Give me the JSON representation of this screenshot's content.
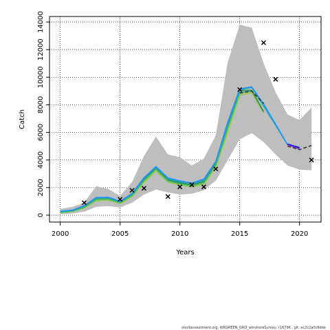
{
  "chart_data": {
    "type": "line",
    "xlabel": "Years",
    "ylabel": "Catch",
    "xlim": [
      1999.1,
      2021.8
    ],
    "ylim": [
      -500,
      14400
    ],
    "xticks": [
      2000,
      2005,
      2010,
      2015,
      2020
    ],
    "yticks": [
      0,
      2000,
      4000,
      6000,
      8000,
      10000,
      12000,
      14000
    ],
    "grid": true,
    "grid_style": "dotted",
    "band": {
      "color": "#bebebe",
      "x": [
        2000,
        2001,
        2002,
        2003,
        2004,
        2005,
        2006,
        2007,
        2008,
        2009,
        2010,
        2011,
        2012,
        2013,
        2014,
        2015,
        2016,
        2017,
        2018,
        2019,
        2020,
        2021
      ],
      "upper": [
        450,
        600,
        900,
        2100,
        1900,
        1400,
        2400,
        4300,
        5700,
        4400,
        4200,
        3600,
        4100,
        5800,
        11100,
        13800,
        13600,
        11000,
        8900,
        7300,
        6900,
        7800
      ],
      "lower": [
        80,
        120,
        250,
        600,
        650,
        550,
        900,
        1500,
        1850,
        1650,
        1500,
        1550,
        1800,
        2500,
        4000,
        5500,
        5950,
        5300,
        4400,
        3600,
        3300,
        3250
      ]
    },
    "series": [
      {
        "color": "#8bcc3c",
        "x": [
          2000,
          2001,
          2002,
          2003,
          2004,
          2005,
          2006,
          2007,
          2008,
          2009,
          2010,
          2011,
          2012,
          2013,
          2014,
          2015,
          2016,
          2017
        ],
        "values": [
          180,
          260,
          520,
          1050,
          1100,
          850,
          1350,
          2400,
          3200,
          2400,
          2200,
          2050,
          2250,
          3500,
          6100,
          8700,
          8900,
          7400
        ]
      },
      {
        "color": "#2e8b57",
        "x": [
          2000,
          2001,
          2002,
          2003,
          2004,
          2005,
          2006,
          2007,
          2008,
          2009,
          2010,
          2011,
          2012,
          2013,
          2014,
          2015,
          2016,
          2017
        ],
        "values": [
          240,
          320,
          620,
          1200,
          1230,
          960,
          1500,
          2600,
          3420,
          2580,
          2350,
          2200,
          2450,
          3750,
          6500,
          9050,
          9050,
          7500
        ]
      },
      {
        "color": "#3cb371",
        "x": [
          2000,
          2001,
          2002,
          2003,
          2004,
          2005,
          2006,
          2007,
          2008,
          2009,
          2010,
          2011,
          2012,
          2013,
          2014,
          2015,
          2016
        ],
        "values": [
          210,
          290,
          580,
          1140,
          1180,
          910,
          1440,
          2520,
          3330,
          2500,
          2280,
          2130,
          2360,
          3650,
          6350,
          8900,
          9000
        ]
      },
      {
        "color": "#20b2aa",
        "x": [
          2000,
          2001,
          2002,
          2003,
          2004,
          2005,
          2006,
          2007,
          2008,
          2009,
          2010,
          2011,
          2012,
          2013,
          2014,
          2015,
          2016,
          2017,
          2018,
          2019
        ],
        "values": [
          260,
          340,
          660,
          1250,
          1270,
          990,
          1540,
          2680,
          3480,
          2650,
          2430,
          2280,
          2550,
          3850,
          6650,
          9100,
          9250,
          7900,
          6500,
          5100
        ]
      },
      {
        "color": "#1e90ff",
        "x": [
          2000,
          2001,
          2002,
          2003,
          2004,
          2005,
          2006,
          2007,
          2008,
          2009,
          2010,
          2011,
          2012,
          2013,
          2014,
          2015,
          2016,
          2017,
          2018,
          2019
        ],
        "values": [
          280,
          360,
          690,
          1280,
          1300,
          1010,
          1570,
          2720,
          3520,
          2700,
          2480,
          2330,
          2620,
          3900,
          6750,
          9150,
          9300,
          8050,
          6600,
          5100
        ]
      },
      {
        "color": "#0000cd",
        "x": [
          2019,
          2020
        ],
        "values": [
          5150,
          4900
        ]
      },
      {
        "color": "#8a2be2",
        "x": [
          2019,
          2020
        ],
        "values": [
          5100,
          4800
        ]
      },
      {
        "color": "#333333",
        "dashed": true,
        "x": [
          2015,
          2016,
          2017
        ],
        "values": [
          8850,
          9000,
          8100
        ]
      },
      {
        "color": "#333333",
        "dashed": true,
        "x": [
          2019,
          2020,
          2021
        ],
        "values": [
          5000,
          4750,
          5050
        ]
      }
    ],
    "observations": {
      "marker": "x",
      "x": [
        2002,
        2005,
        2006,
        2007,
        2009,
        2010,
        2011,
        2012,
        2013,
        2015,
        2017,
        2018,
        2021
      ],
      "values": [
        900,
        1150,
        1800,
        1950,
        1350,
        2050,
        2200,
        2050,
        3350,
        9100,
        12500,
        9850,
        4000
      ]
    }
  },
  "footer_text": "stockassessment.org,  WKGREEN_GRO_wInshoreSurvey,  r16796 ,  git: ec2c2a0c6dde"
}
